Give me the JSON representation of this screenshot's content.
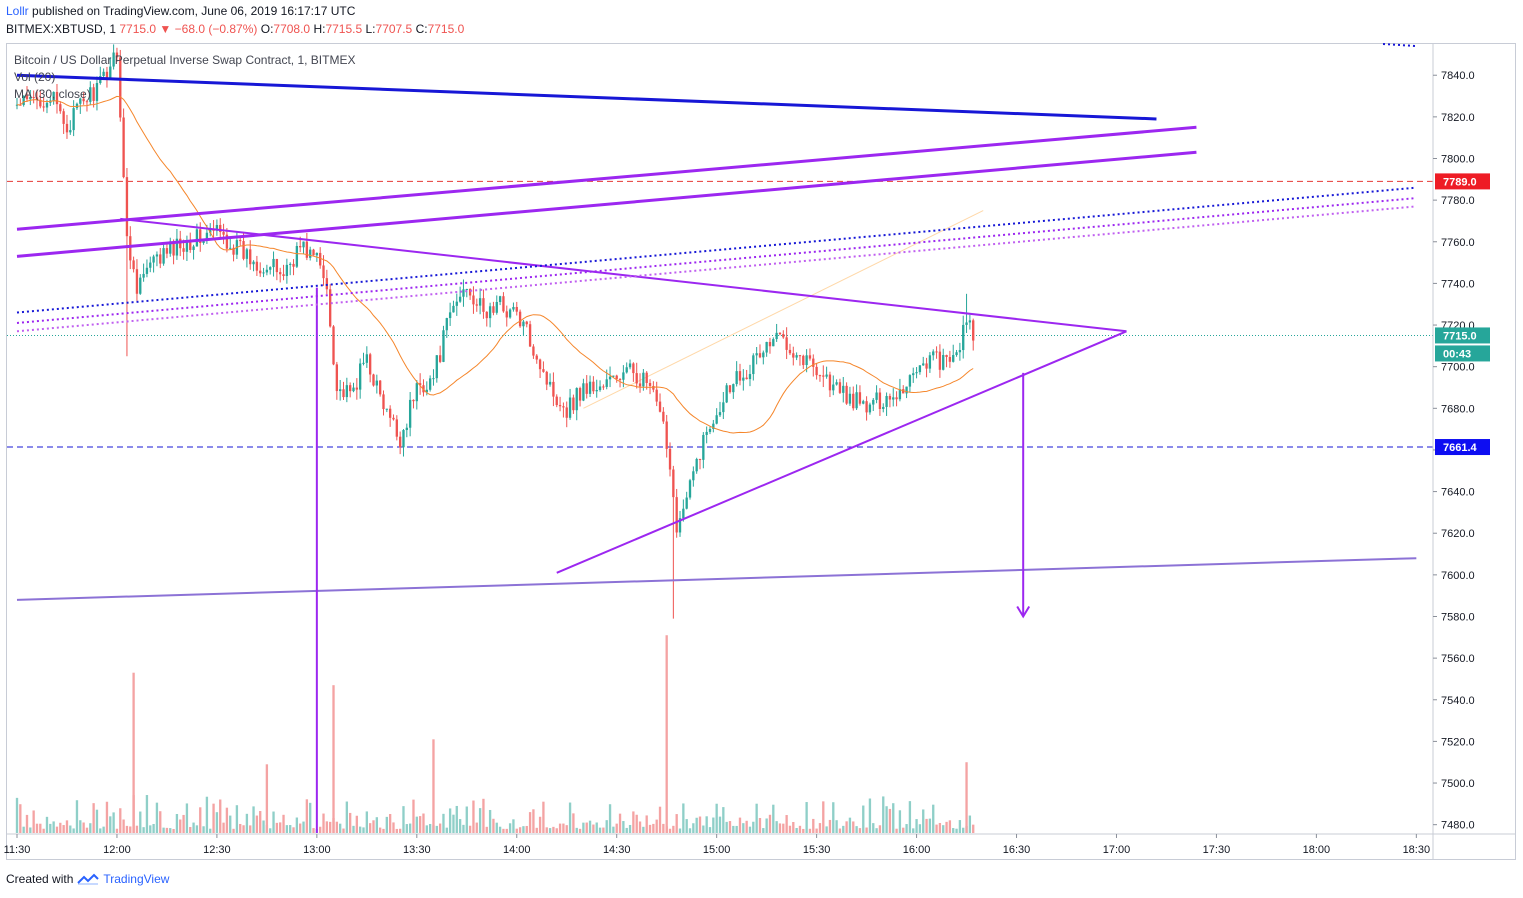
{
  "header": {
    "author": "Lollr",
    "published": "published on TradingView.com, June 06, 2019 16:17:17 UTC"
  },
  "ohlc": {
    "symbol": "BITMEX:XBTUSD, 1",
    "last": "7715.0",
    "arrow": "▼",
    "change": "−68.0 (−0.87%)",
    "o_label": "O:",
    "o": "7708.0",
    "h_label": "H:",
    "h": "7715.5",
    "l_label": "L:",
    "l": "7707.5",
    "c_label": "C:",
    "c": "7715.0"
  },
  "legend": {
    "title": "Bitcoin / US Dollar Perpetual Inverse Swap Contract, 1, BITMEX",
    "vol": "Vol (20)",
    "ma": "MA (30, close)"
  },
  "footer": {
    "created": "Created with",
    "brand": "TradingView"
  },
  "colors": {
    "up": "#26a69a",
    "down": "#ef5350",
    "vol_up": "#8fcfc8",
    "vol_down": "#f4a3a3",
    "ma": "#f5862b",
    "purple": "#9c27f0",
    "blue": "#1717d6",
    "lavender": "#8c72d6",
    "red_line": "#e53935",
    "last_price_tag": "#26a69a",
    "red_tag": "#ee1c25",
    "blue_tag": "#0d0df2"
  },
  "chart_data": {
    "type": "candlestick",
    "x_ticks": [
      "11:30",
      "12:00",
      "12:30",
      "13:00",
      "13:30",
      "14:00",
      "14:30",
      "15:00",
      "15:30",
      "16:00",
      "16:30",
      "17:00",
      "17:30",
      "18:00",
      "18:30"
    ],
    "y_ticks": [
      7480.0,
      7500.0,
      7520.0,
      7540.0,
      7560.0,
      7580.0,
      7600.0,
      7620.0,
      7640.0,
      7660.0,
      7680.0,
      7700.0,
      7720.0,
      7740.0,
      7760.0,
      7780.0,
      7800.0,
      7820.0,
      7840.0
    ],
    "ylim": [
      7476,
      7855
    ],
    "xlim_minutes": [
      687,
      1115
    ],
    "price_tags": [
      {
        "label": "7789.0",
        "value": 7789.0,
        "color": "#ee1c25"
      },
      {
        "label": "7715.0",
        "value": 7715.0,
        "color": "#26a69a"
      },
      {
        "label": "00:43",
        "value": 7721.0,
        "color": "#26a69a",
        "offset_below": true
      },
      {
        "label": "7661.4",
        "value": 7661.4,
        "color": "#0d0df2"
      }
    ],
    "price_path": [
      [
        "11:30",
        7825
      ],
      [
        "11:40",
        7830
      ],
      [
        "11:45",
        7815
      ],
      [
        "11:50",
        7828
      ],
      [
        "11:55",
        7835
      ],
      [
        "12:00",
        7853
      ],
      [
        "12:03",
        7760
      ],
      [
        "12:06",
        7740
      ],
      [
        "12:10",
        7748
      ],
      [
        "12:15",
        7755
      ],
      [
        "12:20",
        7760
      ],
      [
        "12:25",
        7762
      ],
      [
        "12:30",
        7765
      ],
      [
        "12:35",
        7758
      ],
      [
        "12:40",
        7752
      ],
      [
        "12:45",
        7748
      ],
      [
        "12:50",
        7745
      ],
      [
        "12:55",
        7758
      ],
      [
        "13:00",
        7752
      ],
      [
        "13:03",
        7738
      ],
      [
        "13:06",
        7690
      ],
      [
        "13:10",
        7685
      ],
      [
        "13:15",
        7705
      ],
      [
        "13:20",
        7680
      ],
      [
        "13:25",
        7665
      ],
      [
        "13:30",
        7690
      ],
      [
        "13:35",
        7695
      ],
      [
        "13:40",
        7725
      ],
      [
        "13:45",
        7740
      ],
      [
        "13:50",
        7725
      ],
      [
        "13:55",
        7730
      ],
      [
        "14:00",
        7725
      ],
      [
        "14:05",
        7710
      ],
      [
        "14:10",
        7690
      ],
      [
        "14:15",
        7680
      ],
      [
        "14:20",
        7690
      ],
      [
        "14:25",
        7690
      ],
      [
        "14:30",
        7695
      ],
      [
        "14:35",
        7698
      ],
      [
        "14:40",
        7690
      ],
      [
        "14:45",
        7665
      ],
      [
        "14:48",
        7625
      ],
      [
        "14:50",
        7630
      ],
      [
        "14:55",
        7660
      ],
      [
        "15:00",
        7680
      ],
      [
        "15:05",
        7695
      ],
      [
        "15:10",
        7700
      ],
      [
        "15:15",
        7710
      ],
      [
        "15:20",
        7715
      ],
      [
        "15:25",
        7705
      ],
      [
        "15:30",
        7700
      ],
      [
        "15:35",
        7690
      ],
      [
        "15:40",
        7685
      ],
      [
        "15:45",
        7680
      ],
      [
        "15:50",
        7685
      ],
      [
        "15:55",
        7688
      ],
      [
        "16:00",
        7700
      ],
      [
        "16:05",
        7705
      ],
      [
        "16:10",
        7700
      ],
      [
        "16:15",
        7720
      ],
      [
        "16:17",
        7715
      ]
    ],
    "extremes": [
      [
        "12:03",
        7705,
        "low"
      ],
      [
        "13:25",
        7658,
        "low"
      ],
      [
        "14:47",
        7579,
        "low"
      ],
      [
        "16:15",
        7735,
        "high"
      ]
    ],
    "volume_spikes": [
      [
        "12:05",
        7553
      ],
      [
        "12:45",
        7509
      ],
      [
        "13:05",
        7547
      ],
      [
        "13:35",
        7521
      ],
      [
        "14:45",
        7571
      ],
      [
        "16:15",
        7510
      ]
    ],
    "drawings": [
      {
        "kind": "line",
        "color": "#1717d6",
        "from": [
          "11:30",
          7840
        ],
        "to": [
          "17:12",
          7819
        ],
        "width": 3
      },
      {
        "kind": "line",
        "color": "#9c27f0",
        "from": [
          "11:30",
          7766
        ],
        "to": [
          "17:24",
          7815
        ],
        "width": 3
      },
      {
        "kind": "line",
        "color": "#9c27f0",
        "from": [
          "11:30",
          7753
        ],
        "to": [
          "17:24",
          7803
        ],
        "width": 3
      },
      {
        "kind": "line",
        "color": "#9c27f0",
        "from": [
          "12:01",
          7771
        ],
        "to": [
          "17:03",
          7717
        ],
        "width": 2
      },
      {
        "kind": "line",
        "color": "#9c27f0",
        "from": [
          "14:12",
          7601
        ],
        "to": [
          "17:03",
          7717
        ],
        "width": 2
      },
      {
        "kind": "line",
        "color": "#8c72d6",
        "from": [
          "11:30",
          7588
        ],
        "to": [
          "18:30",
          7608
        ],
        "width": 2
      },
      {
        "kind": "line",
        "color": "#9c27f0",
        "from": [
          "13:00",
          7738
        ],
        "to": [
          "13:00",
          7476
        ],
        "width": 2
      },
      {
        "kind": "arrow",
        "color": "#9c27f0",
        "from": [
          "16:32",
          7697
        ],
        "to": [
          "16:32",
          7580
        ],
        "width": 2
      },
      {
        "kind": "dotted",
        "color": "#1717d6",
        "from": [
          "11:30",
          7726
        ],
        "to": [
          "18:30",
          7786
        ]
      },
      {
        "kind": "dotted",
        "color": "#9c27f0",
        "from": [
          "11:30",
          7721
        ],
        "to": [
          "18:30",
          7781
        ]
      },
      {
        "kind": "dotted",
        "color": "#c060f0",
        "from": [
          "11:30",
          7717
        ],
        "to": [
          "18:30",
          7777
        ]
      },
      {
        "kind": "dotted",
        "color": "#1717d6",
        "from": [
          "18:20",
          7855
        ],
        "to": [
          "18:30",
          7854
        ]
      },
      {
        "kind": "line",
        "color": "#ffd8a8",
        "from": [
          "14:20",
          7680
        ],
        "to": [
          "16:20",
          7775
        ],
        "width": 1
      },
      {
        "kind": "hline-dashed",
        "color": "#e53935",
        "value": 7789.0
      },
      {
        "kind": "hline-dashed",
        "color": "#1717d6",
        "value": 7661.4
      },
      {
        "kind": "hline-dotted",
        "color": "#26a69a",
        "value": 7715.0
      }
    ]
  }
}
